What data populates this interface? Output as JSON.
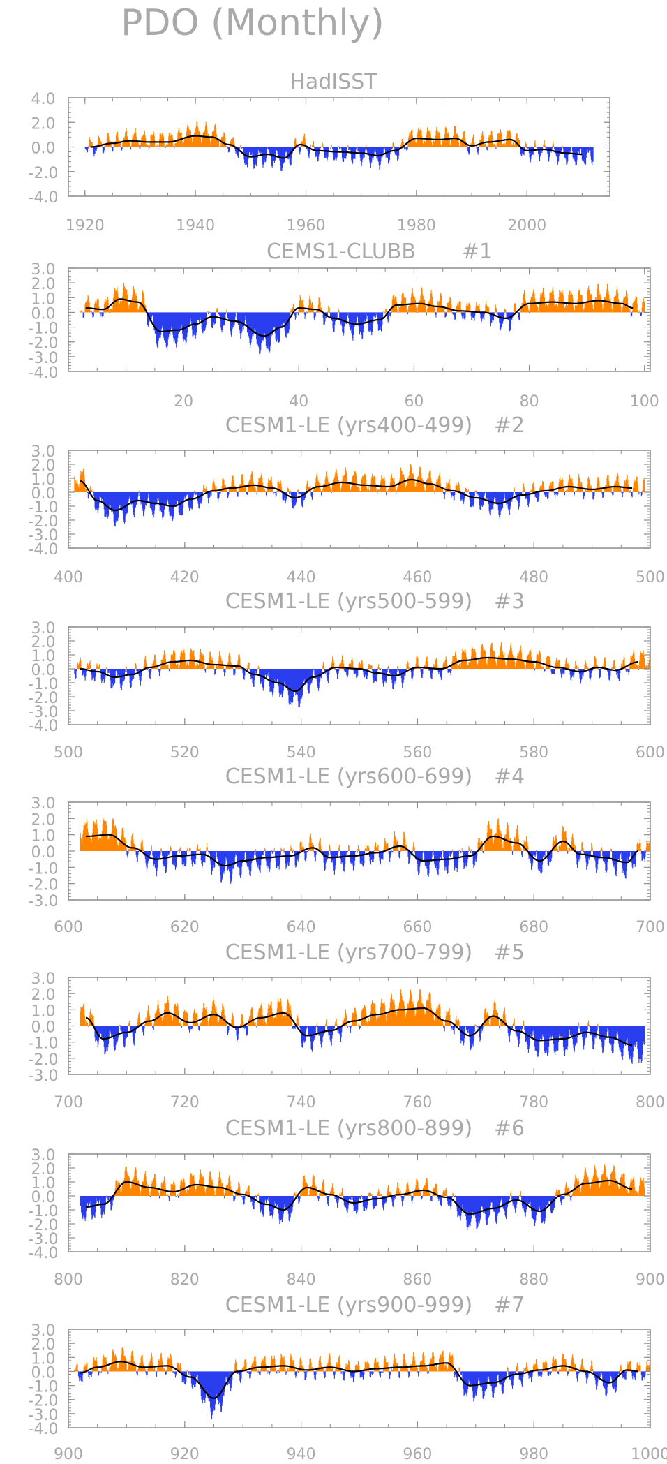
{
  "title": "PDO (Monthly)",
  "colors": {
    "positive": "#ff8400",
    "negative": "#2a3ef0",
    "smooth": "#000000",
    "frame": "#8c8c8c",
    "text": "#a9a9a9"
  },
  "chart_data": [
    {
      "type": "bar",
      "title": "HadISST",
      "xlim": [
        1917,
        2015
      ],
      "ylim": [
        -4.0,
        4.0
      ],
      "xticks": [
        "1920",
        "1940",
        "1960",
        "1980",
        "2000"
      ],
      "xtick_values": [
        1920,
        1940,
        1960,
        1980,
        2000
      ],
      "yticks": [
        "4.0",
        "2.0",
        "0.0",
        "-2.0",
        "-4.0"
      ],
      "ytick_values": [
        4.0,
        2.0,
        0.0,
        -2.0,
        -4.0
      ],
      "smoothed_anchors": [
        [
          1921,
          0.0
        ],
        [
          1925,
          0.3
        ],
        [
          1928,
          0.5
        ],
        [
          1932,
          0.4
        ],
        [
          1935,
          0.4
        ],
        [
          1940,
          0.9
        ],
        [
          1943,
          0.8
        ],
        [
          1946,
          0.2
        ],
        [
          1950,
          -0.8
        ],
        [
          1953,
          -0.6
        ],
        [
          1956,
          -0.9
        ],
        [
          1959,
          0.2
        ],
        [
          1962,
          -0.3
        ],
        [
          1966,
          -0.4
        ],
        [
          1970,
          -0.5
        ],
        [
          1973,
          -0.7
        ],
        [
          1976,
          -0.3
        ],
        [
          1980,
          0.7
        ],
        [
          1984,
          0.6
        ],
        [
          1987,
          0.7
        ],
        [
          1990,
          0.1
        ],
        [
          1993,
          0.4
        ],
        [
          1997,
          0.6
        ],
        [
          2000,
          -0.3
        ],
        [
          2003,
          -0.2
        ],
        [
          2007,
          -0.5
        ],
        [
          2010,
          -0.6
        ]
      ]
    },
    {
      "type": "bar",
      "title": "CEMS1-CLUBB",
      "title_suffix": "#1",
      "xlim": [
        0,
        101
      ],
      "ylim": [
        -4.0,
        3.0
      ],
      "xticks": [
        "20",
        "40",
        "60",
        "80",
        "100"
      ],
      "xtick_values": [
        20,
        40,
        60,
        80,
        100
      ],
      "yticks": [
        "3.0",
        "2.0",
        "1.0",
        "0.0",
        "-1.0",
        "-2.0",
        "-3.0",
        "-4.0"
      ],
      "ytick_values": [
        3.0,
        2.0,
        1.0,
        0.0,
        -1.0,
        -2.0,
        -3.0,
        -4.0
      ],
      "smoothed_anchors": [
        [
          3,
          0.3
        ],
        [
          6,
          0.2
        ],
        [
          9,
          0.9
        ],
        [
          12,
          0.7
        ],
        [
          16,
          -1.3
        ],
        [
          19,
          -1.2
        ],
        [
          22,
          -0.8
        ],
        [
          25,
          -0.3
        ],
        [
          29,
          -0.6
        ],
        [
          34,
          -1.6
        ],
        [
          37,
          -1.0
        ],
        [
          40,
          0.3
        ],
        [
          43,
          0.2
        ],
        [
          46,
          -0.4
        ],
        [
          50,
          -0.8
        ],
        [
          54,
          -0.5
        ],
        [
          57,
          0.5
        ],
        [
          61,
          0.6
        ],
        [
          64,
          0.4
        ],
        [
          68,
          0.1
        ],
        [
          72,
          0.0
        ],
        [
          76,
          -0.4
        ],
        [
          80,
          0.6
        ],
        [
          84,
          0.7
        ],
        [
          88,
          0.6
        ],
        [
          92,
          0.8
        ],
        [
          96,
          0.6
        ],
        [
          98,
          0.3
        ]
      ]
    },
    {
      "type": "bar",
      "title": "CESM1-LE (yrs400-499)",
      "title_suffix": "#2",
      "xlim": [
        400,
        500
      ],
      "ylim": [
        -4.0,
        3.0
      ],
      "xticks": [
        "400",
        "420",
        "440",
        "460",
        "480",
        "500"
      ],
      "xtick_values": [
        400,
        420,
        440,
        460,
        480,
        500
      ],
      "yticks": [
        "3.0",
        "2.0",
        "1.0",
        "0.0",
        "-1.0",
        "-2.0",
        "-3.0",
        "-4.0"
      ],
      "ytick_values": [
        3.0,
        2.0,
        1.0,
        0.0,
        -1.0,
        -2.0,
        -3.0,
        -4.0
      ],
      "smoothed_anchors": [
        [
          402,
          0.8
        ],
        [
          405,
          -0.6
        ],
        [
          408,
          -1.3
        ],
        [
          412,
          -0.6
        ],
        [
          415,
          -0.8
        ],
        [
          418,
          -1.0
        ],
        [
          421,
          -0.5
        ],
        [
          425,
          0.1
        ],
        [
          428,
          0.3
        ],
        [
          432,
          0.5
        ],
        [
          435,
          0.3
        ],
        [
          439,
          -0.4
        ],
        [
          443,
          0.4
        ],
        [
          447,
          0.7
        ],
        [
          451,
          0.5
        ],
        [
          455,
          0.4
        ],
        [
          459,
          0.9
        ],
        [
          462,
          0.6
        ],
        [
          466,
          0.1
        ],
        [
          470,
          -0.4
        ],
        [
          474,
          -0.8
        ],
        [
          478,
          -0.2
        ],
        [
          482,
          0.1
        ],
        [
          486,
          0.4
        ],
        [
          490,
          0.2
        ],
        [
          494,
          0.4
        ],
        [
          497,
          0.3
        ]
      ]
    },
    {
      "type": "bar",
      "title": "CESM1-LE (yrs500-599)",
      "title_suffix": "#3",
      "xlim": [
        500,
        600
      ],
      "ylim": [
        -4.0,
        3.0
      ],
      "xticks": [
        "500",
        "520",
        "540",
        "560",
        "580",
        "600"
      ],
      "xtick_values": [
        500,
        520,
        540,
        560,
        580,
        600
      ],
      "yticks": [
        "3.0",
        "2.0",
        "1.0",
        "0.0",
        "-1.0",
        "-2.0",
        "-3.0",
        "-4.0"
      ],
      "ytick_values": [
        3.0,
        2.0,
        1.0,
        0.0,
        -1.0,
        -2.0,
        -3.0,
        -4.0
      ],
      "smoothed_anchors": [
        [
          502,
          0.0
        ],
        [
          505,
          -0.2
        ],
        [
          508,
          -0.6
        ],
        [
          511,
          -0.4
        ],
        [
          514,
          0.1
        ],
        [
          518,
          0.5
        ],
        [
          521,
          0.6
        ],
        [
          525,
          0.3
        ],
        [
          529,
          0.2
        ],
        [
          532,
          -0.4
        ],
        [
          536,
          -1.0
        ],
        [
          539,
          -1.6
        ],
        [
          542,
          -0.6
        ],
        [
          546,
          0.1
        ],
        [
          550,
          0.0
        ],
        [
          553,
          -0.3
        ],
        [
          556,
          -0.5
        ],
        [
          560,
          0.1
        ],
        [
          564,
          0.0
        ],
        [
          568,
          0.6
        ],
        [
          572,
          0.8
        ],
        [
          576,
          0.7
        ],
        [
          580,
          0.5
        ],
        [
          584,
          0.1
        ],
        [
          588,
          -0.2
        ],
        [
          591,
          0.1
        ],
        [
          594,
          -0.1
        ],
        [
          598,
          0.5
        ]
      ]
    },
    {
      "type": "bar",
      "title": "CESM1-LE (yrs600-699)",
      "title_suffix": "#4",
      "xlim": [
        600,
        700
      ],
      "ylim": [
        -3.0,
        3.0
      ],
      "xticks": [
        "600",
        "620",
        "640",
        "660",
        "680",
        "700"
      ],
      "xtick_values": [
        600,
        620,
        640,
        660,
        680,
        700
      ],
      "yticks": [
        "3.0",
        "2.0",
        "1.0",
        "0.0",
        "-1.0",
        "-2.0",
        "-3.0"
      ],
      "ytick_values": [
        3.0,
        2.0,
        1.0,
        0.0,
        -1.0,
        -2.0,
        -3.0
      ],
      "smoothed_anchors": [
        [
          603,
          0.9
        ],
        [
          607,
          1.0
        ],
        [
          611,
          0.2
        ],
        [
          615,
          -0.5
        ],
        [
          619,
          -0.3
        ],
        [
          623,
          -0.2
        ],
        [
          627,
          -0.9
        ],
        [
          630,
          -0.6
        ],
        [
          634,
          -0.4
        ],
        [
          638,
          -0.3
        ],
        [
          642,
          0.2
        ],
        [
          645,
          -0.4
        ],
        [
          649,
          -0.3
        ],
        [
          653,
          -0.1
        ],
        [
          657,
          0.3
        ],
        [
          661,
          -0.6
        ],
        [
          665,
          -0.5
        ],
        [
          669,
          -0.3
        ],
        [
          673,
          0.9
        ],
        [
          677,
          0.5
        ],
        [
          681,
          -0.6
        ],
        [
          685,
          0.6
        ],
        [
          688,
          -0.2
        ],
        [
          692,
          -0.4
        ],
        [
          696,
          -0.7
        ],
        [
          698,
          0.0
        ]
      ]
    },
    {
      "type": "bar",
      "title": "CESM1-LE (yrs700-799)",
      "title_suffix": "#5",
      "xlim": [
        700,
        800
      ],
      "ylim": [
        -3.0,
        3.0
      ],
      "xticks": [
        "700",
        "720",
        "740",
        "760",
        "780",
        "800"
      ],
      "xtick_values": [
        700,
        720,
        740,
        760,
        780,
        800
      ],
      "yticks": [
        "3.0",
        "2.0",
        "1.0",
        "0.0",
        "-1.0",
        "-2.0",
        "-3.0"
      ],
      "ytick_values": [
        3.0,
        2.0,
        1.0,
        0.0,
        -1.0,
        -2.0,
        -3.0
      ],
      "smoothed_anchors": [
        [
          703,
          0.5
        ],
        [
          706,
          -0.8
        ],
        [
          710,
          -0.4
        ],
        [
          714,
          0.3
        ],
        [
          717,
          0.8
        ],
        [
          721,
          0.2
        ],
        [
          725,
          0.7
        ],
        [
          729,
          -0.1
        ],
        [
          733,
          0.5
        ],
        [
          737,
          0.8
        ],
        [
          741,
          -0.6
        ],
        [
          745,
          -0.3
        ],
        [
          749,
          0.3
        ],
        [
          753,
          0.7
        ],
        [
          757,
          1.0
        ],
        [
          761,
          1.1
        ],
        [
          765,
          0.3
        ],
        [
          769,
          -0.6
        ],
        [
          773,
          0.6
        ],
        [
          777,
          -0.3
        ],
        [
          781,
          -0.9
        ],
        [
          785,
          -0.8
        ],
        [
          789,
          -0.4
        ],
        [
          793,
          -0.7
        ],
        [
          797,
          -1.2
        ]
      ]
    },
    {
      "type": "bar",
      "title": "CESM1-LE (yrs800-899)",
      "title_suffix": "#6",
      "xlim": [
        800,
        900
      ],
      "ylim": [
        -4.0,
        3.0
      ],
      "xticks": [
        "800",
        "820",
        "840",
        "860",
        "880",
        "900"
      ],
      "xtick_values": [
        800,
        820,
        840,
        860,
        880,
        900
      ],
      "yticks": [
        "3.0",
        "2.0",
        "1.0",
        "0.0",
        "-1.0",
        "-2.0",
        "-3.0",
        "-4.0"
      ],
      "ytick_values": [
        3.0,
        2.0,
        1.0,
        0.0,
        -1.0,
        -2.0,
        -3.0,
        -4.0
      ],
      "smoothed_anchors": [
        [
          803,
          -0.8
        ],
        [
          806,
          -0.6
        ],
        [
          810,
          1.0
        ],
        [
          814,
          0.6
        ],
        [
          818,
          0.3
        ],
        [
          822,
          0.8
        ],
        [
          826,
          0.6
        ],
        [
          830,
          0.1
        ],
        [
          834,
          -0.6
        ],
        [
          837,
          -1.0
        ],
        [
          841,
          0.6
        ],
        [
          845,
          0.1
        ],
        [
          849,
          -0.5
        ],
        [
          853,
          -0.2
        ],
        [
          857,
          0.1
        ],
        [
          861,
          0.4
        ],
        [
          865,
          -0.1
        ],
        [
          869,
          -1.3
        ],
        [
          873,
          -0.9
        ],
        [
          877,
          -0.3
        ],
        [
          881,
          -1.1
        ],
        [
          885,
          0.1
        ],
        [
          889,
          0.9
        ],
        [
          893,
          1.1
        ],
        [
          897,
          0.5
        ]
      ]
    },
    {
      "type": "bar",
      "title": "CESM1-LE (yrs900-999)",
      "title_suffix": "#7",
      "xlim": [
        900,
        1000
      ],
      "ylim": [
        -4.0,
        3.0
      ],
      "xticks": [
        "900",
        "920",
        "940",
        "960",
        "980",
        "1000"
      ],
      "xtick_values": [
        900,
        920,
        940,
        960,
        980,
        1000
      ],
      "yticks": [
        "3.0",
        "2.0",
        "1.0",
        "0.0",
        "-1.0",
        "-2.0",
        "-3.0",
        "-4.0"
      ],
      "ytick_values": [
        3.0,
        2.0,
        1.0,
        0.0,
        -1.0,
        -2.0,
        -3.0,
        -4.0
      ],
      "smoothed_anchors": [
        [
          902,
          -0.1
        ],
        [
          905,
          0.3
        ],
        [
          909,
          0.7
        ],
        [
          913,
          0.3
        ],
        [
          917,
          0.4
        ],
        [
          921,
          -0.4
        ],
        [
          925,
          -1.9
        ],
        [
          929,
          0.0
        ],
        [
          933,
          0.3
        ],
        [
          937,
          0.4
        ],
        [
          941,
          0.1
        ],
        [
          945,
          0.3
        ],
        [
          949,
          0.0
        ],
        [
          953,
          0.2
        ],
        [
          957,
          0.3
        ],
        [
          961,
          0.4
        ],
        [
          965,
          0.6
        ],
        [
          969,
          -1.0
        ],
        [
          973,
          -0.8
        ],
        [
          977,
          -0.2
        ],
        [
          981,
          0.1
        ],
        [
          985,
          0.4
        ],
        [
          989,
          0.0
        ],
        [
          993,
          -0.8
        ],
        [
          996,
          0.1
        ],
        [
          998,
          0.0
        ]
      ]
    }
  ]
}
